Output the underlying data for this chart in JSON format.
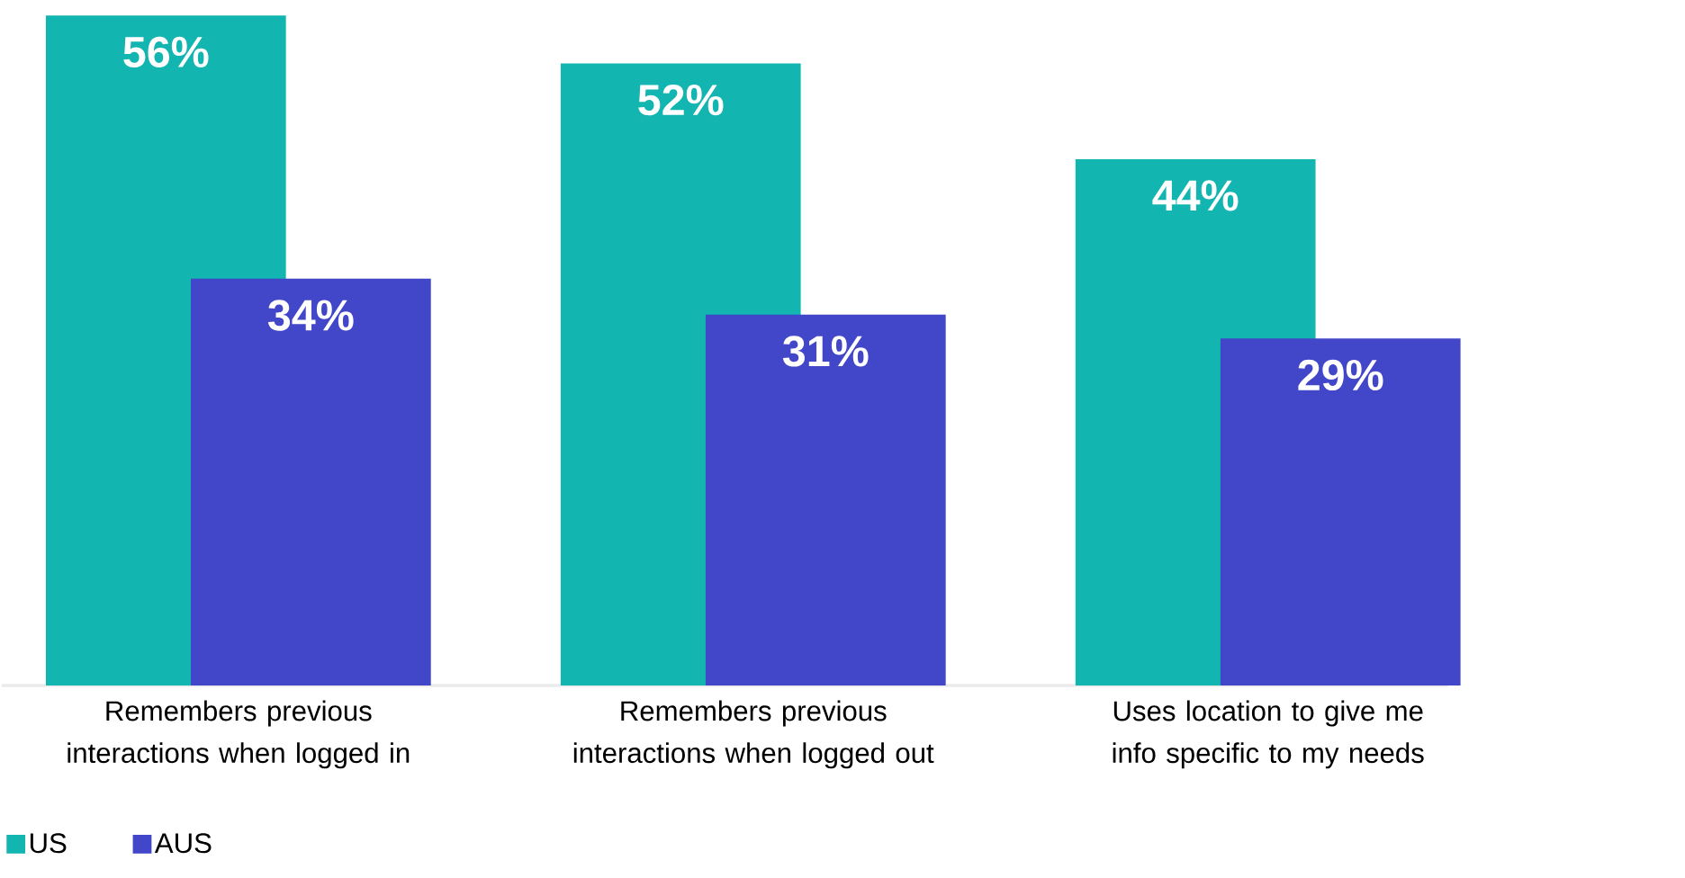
{
  "chart_data": {
    "type": "bar",
    "categories": [
      "Remembers previous interactions when logged in",
      "Remembers previous interactions when logged out",
      "Uses location to give me info specific to my needs"
    ],
    "series": [
      {
        "name": "US",
        "color": "#12b5b0",
        "values": [
          56,
          52,
          44
        ],
        "value_labels": [
          "56%",
          "52%",
          "44%"
        ]
      },
      {
        "name": "AUS",
        "color": "#4246c8",
        "values": [
          34,
          31,
          29
        ],
        "value_labels": [
          "34%",
          "31%",
          "29%"
        ]
      }
    ],
    "legend": "bottom left"
  }
}
